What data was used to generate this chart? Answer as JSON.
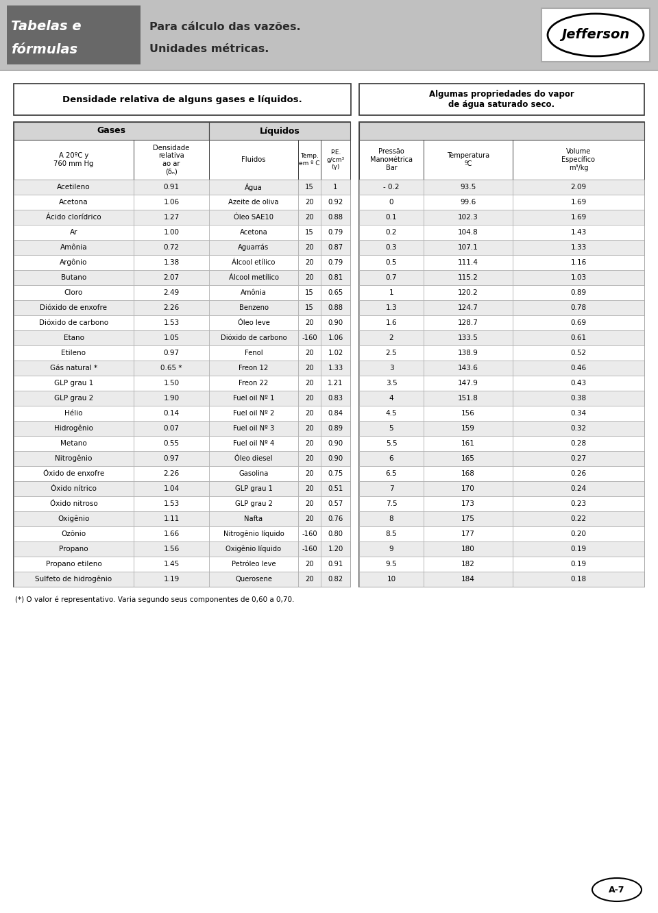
{
  "section_title1": "Densidade relativa de alguns gases e líquidos.",
  "section_title2": "Algumas propriedades do vapor\nde água saturado seco.",
  "gases_header": "Gases",
  "liquidos_header": "Líquidos",
  "gases_col1_header": "A 20ºC y\n760 mm Hg",
  "gases_col2_header": "Densidade\nrelativa\nao ar\n(δₙ)",
  "liquidos_col1_header": "Fluidos",
  "liquidos_col2_header": "Temp.\nem º C",
  "liquidos_col3_header": "P.E.\ng/cm³\n(γ)",
  "vapor_col1_header": "Pressão\nManoмétrica\nBar",
  "vapor_col2_header": "Temperatura\nºC",
  "vapor_col3_header": "Volume\nEspecífico\nm³/kg",
  "gases_data": [
    [
      "Acetileno",
      "0.91"
    ],
    [
      "Acetona",
      "1.06"
    ],
    [
      "Ácido clorídrico",
      "1.27"
    ],
    [
      "Ar",
      "1.00"
    ],
    [
      "Amônia",
      "0.72"
    ],
    [
      "Argônio",
      "1.38"
    ],
    [
      "Butano",
      "2.07"
    ],
    [
      "Cloro",
      "2.49"
    ],
    [
      "Dióxido de enxofre",
      "2.26"
    ],
    [
      "Dióxido de carbono",
      "1.53"
    ],
    [
      "Etano",
      "1.05"
    ],
    [
      "Etileno",
      "0.97"
    ],
    [
      "Gás natural *",
      "0.65 *"
    ],
    [
      "GLP grau 1",
      "1.50"
    ],
    [
      "GLP grau 2",
      "1.90"
    ],
    [
      "Hélio",
      "0.14"
    ],
    [
      "Hidrogênio",
      "0.07"
    ],
    [
      "Metano",
      "0.55"
    ],
    [
      "Nitrogênio",
      "0.97"
    ],
    [
      "Óxido de enxofre",
      "2.26"
    ],
    [
      "Óxido nítrico",
      "1.04"
    ],
    [
      "Óxido nitroso",
      "1.53"
    ],
    [
      "Oxigênio",
      "1.11"
    ],
    [
      "Ozônio",
      "1.66"
    ],
    [
      "Propano",
      "1.56"
    ],
    [
      "Propano etileno",
      "1.45"
    ],
    [
      "Sulfeto de hidrogênio",
      "1.19"
    ]
  ],
  "liquidos_data": [
    [
      "Água",
      "15",
      "1"
    ],
    [
      "Azeite de oliva",
      "20",
      "0.92"
    ],
    [
      "Óleo SAE10",
      "20",
      "0.88"
    ],
    [
      "Acetona",
      "15",
      "0.79"
    ],
    [
      "Aguarrás",
      "20",
      "0.87"
    ],
    [
      "Álcool etílico",
      "20",
      "0.79"
    ],
    [
      "Álcool metílico",
      "20",
      "0.81"
    ],
    [
      "Amônia",
      "15",
      "0.65"
    ],
    [
      "Benzeno",
      "15",
      "0.88"
    ],
    [
      "Óleo leve",
      "20",
      "0.90"
    ],
    [
      "Dióxido de carbono",
      "-160",
      "1.06"
    ],
    [
      "Fenol",
      "20",
      "1.02"
    ],
    [
      "Freon 12",
      "20",
      "1.33"
    ],
    [
      "Freon 22",
      "20",
      "1.21"
    ],
    [
      "Fuel oil Nº 1",
      "20",
      "0.83"
    ],
    [
      "Fuel oil Nº 2",
      "20",
      "0.84"
    ],
    [
      "Fuel oil Nº 3",
      "20",
      "0.89"
    ],
    [
      "Fuel oil Nº 4",
      "20",
      "0.90"
    ],
    [
      "Óleo diesel",
      "20",
      "0.90"
    ],
    [
      "Gasolina",
      "20",
      "0.75"
    ],
    [
      "GLP grau 1",
      "20",
      "0.51"
    ],
    [
      "GLP grau 2",
      "20",
      "0.57"
    ],
    [
      "Nafta",
      "20",
      "0.76"
    ],
    [
      "Nitrogênio líquido",
      "-160",
      "0.80"
    ],
    [
      "Oxigênio líquido",
      "-160",
      "1.20"
    ],
    [
      "Petróleo leve",
      "20",
      "0.91"
    ],
    [
      "Querosene",
      "20",
      "0.82"
    ]
  ],
  "vapor_data": [
    [
      "- 0.2",
      "93.5",
      "2.09"
    ],
    [
      "0",
      "99.6",
      "1.69"
    ],
    [
      "0.1",
      "102.3",
      "1.69"
    ],
    [
      "0.2",
      "104.8",
      "1.43"
    ],
    [
      "0.3",
      "107.1",
      "1.33"
    ],
    [
      "0.5",
      "111.4",
      "1.16"
    ],
    [
      "0.7",
      "115.2",
      "1.03"
    ],
    [
      "1",
      "120.2",
      "0.89"
    ],
    [
      "1.3",
      "124.7",
      "0.78"
    ],
    [
      "1.6",
      "128.7",
      "0.69"
    ],
    [
      "2",
      "133.5",
      "0.61"
    ],
    [
      "2.5",
      "138.9",
      "0.52"
    ],
    [
      "3",
      "143.6",
      "0.46"
    ],
    [
      "3.5",
      "147.9",
      "0.43"
    ],
    [
      "4",
      "151.8",
      "0.38"
    ],
    [
      "4.5",
      "156",
      "0.34"
    ],
    [
      "5",
      "159",
      "0.32"
    ],
    [
      "5.5",
      "161",
      "0.28"
    ],
    [
      "6",
      "165",
      "0.27"
    ],
    [
      "6.5",
      "168",
      "0.26"
    ],
    [
      "7",
      "170",
      "0.24"
    ],
    [
      "7.5",
      "173",
      "0.23"
    ],
    [
      "8",
      "175",
      "0.22"
    ],
    [
      "8.5",
      "177",
      "0.20"
    ],
    [
      "9",
      "180",
      "0.19"
    ],
    [
      "9.5",
      "182",
      "0.19"
    ],
    [
      "10",
      "184",
      "0.18"
    ]
  ],
  "footnote": "(*) O valor é representativo. Varia segundo seus componentes de 0,60 a 0,70.",
  "page_label": "A-7",
  "header_dark_bg": "#686868",
  "header_light_bg": "#c0c0c0",
  "table_header_bg": "#d4d4d4",
  "row_alt_bg": "#ebebeb",
  "row_white_bg": "#ffffff",
  "border_color": "#555555",
  "text_color": "#111111"
}
